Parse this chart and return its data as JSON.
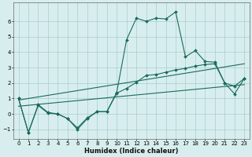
{
  "xlabel": "Humidex (Indice chaleur)",
  "xlim": [
    -0.5,
    23.5
  ],
  "ylim": [
    -1.6,
    7.2
  ],
  "yticks": [
    -1,
    0,
    1,
    2,
    3,
    4,
    5,
    6
  ],
  "xticks": [
    0,
    1,
    2,
    3,
    4,
    5,
    6,
    7,
    8,
    9,
    10,
    11,
    12,
    13,
    14,
    15,
    16,
    17,
    18,
    19,
    20,
    21,
    22,
    23
  ],
  "background_color": "#d8eeee",
  "grid_color": "#a8cccc",
  "line_color": "#1a6b5a",
  "line1_x": [
    0,
    1,
    2,
    3,
    4,
    5,
    6,
    7,
    8,
    9,
    10,
    11,
    12,
    13,
    14,
    15,
    16,
    17,
    18,
    19,
    20,
    21,
    22,
    23
  ],
  "line1_y": [
    1.0,
    -1.2,
    0.6,
    0.1,
    0.0,
    -0.3,
    -1.0,
    -0.3,
    0.15,
    0.15,
    1.4,
    4.8,
    6.2,
    6.0,
    6.2,
    6.15,
    6.6,
    3.7,
    4.1,
    3.4,
    3.35,
    2.0,
    1.3,
    2.3
  ],
  "line2_x": [
    0,
    1,
    2,
    3,
    4,
    5,
    6,
    7,
    8,
    9,
    10,
    11,
    12,
    13,
    14,
    15,
    16,
    17,
    18,
    19,
    20,
    21,
    22,
    23
  ],
  "line2_y": [
    1.0,
    -1.2,
    0.55,
    0.05,
    0.0,
    -0.3,
    -0.9,
    -0.25,
    0.15,
    0.15,
    1.35,
    1.65,
    2.05,
    2.5,
    2.55,
    2.7,
    2.85,
    2.95,
    3.1,
    3.2,
    3.25,
    2.0,
    1.8,
    2.3
  ],
  "line3_x": [
    0,
    23
  ],
  "line3_y": [
    0.9,
    3.25
  ],
  "line4_x": [
    0,
    23
  ],
  "line4_y": [
    0.5,
    1.9
  ]
}
